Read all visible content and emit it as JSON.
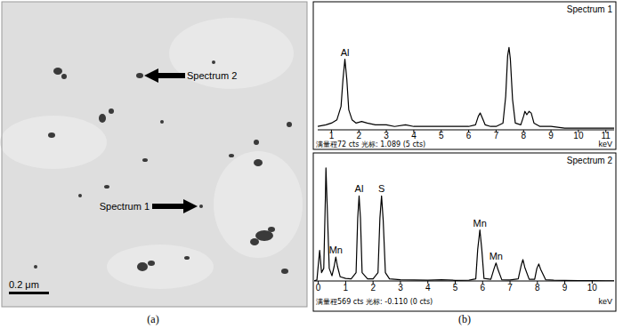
{
  "micrograph": {
    "labels": [
      "Spectrum 2",
      "Spectrum 1"
    ],
    "scale_bar": "0.2 μm",
    "panel_label": "(a)"
  },
  "panel_b_label": "(b)",
  "chart_data": [
    {
      "type": "line",
      "title": "Spectrum 1",
      "xlabel": "keV",
      "footer": "满量程72 cts 光标: 1.089 (5 cts)",
      "color": "#000000",
      "grid": false,
      "tick_labels": "x",
      "xlim": [
        0.5,
        11.3
      ],
      "xticks": [
        1,
        2,
        3,
        4,
        5,
        6,
        7,
        8,
        9,
        10,
        11
      ],
      "ylim": [
        0,
        72
      ],
      "x": [
        0.5,
        0.8,
        1.0,
        1.2,
        1.35,
        1.42,
        1.49,
        1.56,
        1.63,
        1.75,
        1.9,
        2.1,
        2.3,
        2.6,
        3.0,
        3.3,
        3.7,
        4.0,
        4.5,
        5.0,
        5.5,
        6.0,
        6.25,
        6.35,
        6.42,
        6.5,
        6.6,
        6.8,
        7.0,
        7.25,
        7.35,
        7.42,
        7.47,
        7.52,
        7.6,
        7.7,
        7.9,
        8.0,
        8.05,
        8.12,
        8.2,
        8.28,
        8.38,
        8.6,
        9.0,
        9.5,
        10.0,
        10.5,
        11.0,
        11.3
      ],
      "values": [
        2,
        3,
        4,
        6,
        14,
        30,
        42,
        30,
        12,
        6,
        4,
        5,
        4,
        3,
        3,
        2,
        3,
        2,
        2,
        2,
        2,
        2,
        3,
        8,
        10,
        7,
        3,
        2,
        2,
        4,
        20,
        44,
        49,
        42,
        18,
        4,
        3,
        8,
        11,
        9,
        11,
        10,
        4,
        2,
        2,
        1,
        1,
        1,
        1,
        1
      ],
      "annotations": [
        {
          "text": "Al",
          "x": 1.49,
          "y": 42
        }
      ]
    },
    {
      "type": "line",
      "title": "Spectrum 2",
      "xlabel": "keV",
      "footer": "满量程569 cts 光标: -0.110 (0 cts)",
      "color": "#000000",
      "grid": false,
      "tick_labels": "x",
      "xlim": [
        -0.15,
        10.8
      ],
      "xticks": [
        0,
        1,
        2,
        3,
        4,
        5,
        6,
        7,
        8,
        9,
        10
      ],
      "ylim": [
        0,
        569
      ],
      "x": [
        -0.15,
        -0.05,
        0.05,
        0.12,
        0.2,
        0.26,
        0.28,
        0.32,
        0.4,
        0.5,
        0.58,
        0.64,
        0.7,
        0.8,
        1.0,
        1.2,
        1.38,
        1.44,
        1.49,
        1.54,
        1.6,
        1.8,
        2.0,
        2.18,
        2.25,
        2.31,
        2.37,
        2.45,
        2.6,
        3.0,
        3.5,
        4.0,
        4.5,
        5.0,
        5.5,
        5.75,
        5.82,
        5.9,
        5.97,
        6.05,
        6.3,
        6.42,
        6.49,
        6.56,
        6.7,
        7.0,
        7.3,
        7.4,
        7.47,
        7.54,
        7.7,
        7.9,
        7.98,
        8.05,
        8.12,
        8.3,
        8.6,
        9.0,
        9.5,
        10.0,
        10.5,
        10.8
      ],
      "values": [
        0,
        5,
        146,
        40,
        60,
        400,
        540,
        380,
        60,
        25,
        70,
        114,
        70,
        20,
        12,
        10,
        40,
        300,
        406,
        300,
        40,
        10,
        10,
        40,
        300,
        406,
        290,
        40,
        10,
        6,
        5,
        4,
        6,
        3,
        4,
        10,
        150,
        244,
        150,
        12,
        8,
        60,
        86,
        55,
        6,
        5,
        10,
        70,
        102,
        65,
        8,
        8,
        60,
        81,
        55,
        6,
        4,
        3,
        2,
        2,
        1,
        1
      ],
      "annotations": [
        {
          "text": "Mn",
          "x": 0.64,
          "y": 114
        },
        {
          "text": "Al",
          "x": 1.49,
          "y": 406
        },
        {
          "text": "S",
          "x": 2.31,
          "y": 406
        },
        {
          "text": "Mn",
          "x": 5.9,
          "y": 244
        },
        {
          "text": "Mn",
          "x": 6.49,
          "y": 86
        }
      ]
    }
  ]
}
